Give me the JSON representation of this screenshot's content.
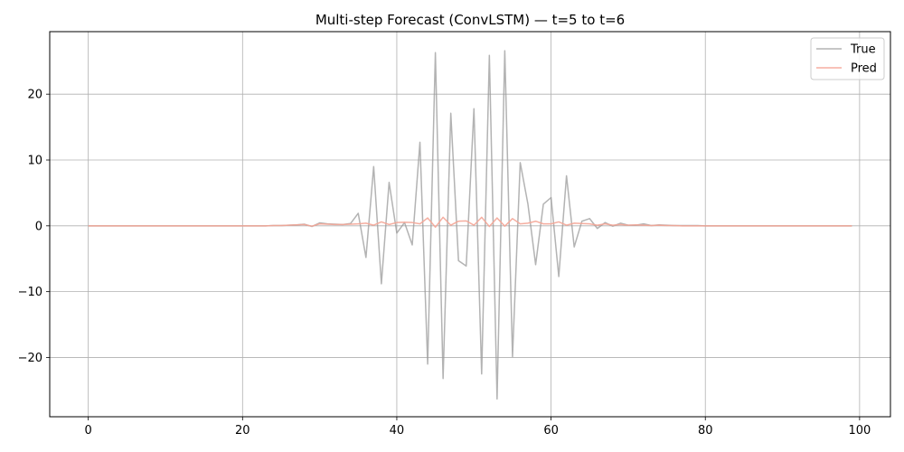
{
  "chart_data": {
    "type": "line",
    "title": "Multi-step Forecast (ConvLSTM) — t=5 to t=6",
    "xlabel": "",
    "ylabel": "",
    "xlim": [
      -5,
      104
    ],
    "ylim": [
      -29,
      29.5
    ],
    "x_ticks": [
      0,
      20,
      40,
      60,
      80,
      100
    ],
    "y_ticks": [
      -20,
      -10,
      0,
      10,
      20
    ],
    "grid": true,
    "legend_position": "top-right",
    "colors": {
      "true": "#999999",
      "pred": "#f4a596"
    },
    "x": [
      0,
      1,
      2,
      3,
      4,
      5,
      6,
      7,
      8,
      9,
      10,
      11,
      12,
      13,
      14,
      15,
      16,
      17,
      18,
      19,
      20,
      21,
      22,
      23,
      24,
      25,
      26,
      27,
      28,
      29,
      30,
      31,
      32,
      33,
      34,
      35,
      36,
      37,
      38,
      39,
      40,
      41,
      42,
      43,
      44,
      45,
      46,
      47,
      48,
      49,
      50,
      51,
      52,
      53,
      54,
      55,
      56,
      57,
      58,
      59,
      60,
      61,
      62,
      63,
      64,
      65,
      66,
      67,
      68,
      69,
      70,
      71,
      72,
      73,
      74,
      75,
      76,
      77,
      78,
      79,
      80,
      81,
      82,
      83,
      84,
      85,
      86,
      87,
      88,
      89,
      90,
      91,
      92,
      93,
      94,
      95,
      96,
      97,
      98,
      99
    ],
    "series": [
      {
        "name": "True",
        "values": [
          0,
          0,
          0,
          0,
          0,
          0,
          0,
          0,
          0,
          0,
          0,
          0,
          0,
          0,
          0,
          0,
          0,
          0,
          0,
          0,
          0,
          0,
          0,
          0,
          0.05,
          0.05,
          0.1,
          0.15,
          0.25,
          -0.1,
          0.45,
          0.3,
          0.25,
          0.2,
          0.35,
          1.9,
          -4.8,
          9.0,
          -8.8,
          6.6,
          -1.1,
          0.5,
          -2.9,
          12.7,
          -21.0,
          26.3,
          -23.2,
          17.1,
          -5.3,
          -6.1,
          17.8,
          -22.5,
          25.9,
          -26.3,
          26.6,
          -19.9,
          9.6,
          3.3,
          -5.9,
          3.3,
          4.3,
          -7.7,
          7.6,
          -3.2,
          0.7,
          1.1,
          -0.4,
          0.5,
          -0.05,
          0.4,
          0.1,
          0.1,
          0.3,
          0.05,
          0.15,
          0.1,
          0.05,
          0.05,
          0.05,
          0.05,
          0,
          0,
          0,
          0,
          0,
          0,
          0,
          0,
          0,
          0,
          0,
          0,
          0,
          0,
          0,
          0,
          0,
          0,
          0,
          0
        ]
      },
      {
        "name": "Pred",
        "values": [
          0,
          0,
          0,
          0,
          0,
          0,
          0,
          0,
          0,
          0,
          0,
          0,
          0,
          0,
          0,
          0,
          0,
          0,
          0,
          0,
          0,
          0,
          0,
          0,
          0.05,
          0.05,
          0.1,
          0.15,
          0.2,
          -0.05,
          0.3,
          0.25,
          0.2,
          0.2,
          0.25,
          0.3,
          0.4,
          0.1,
          0.6,
          0.2,
          0.5,
          0.55,
          0.5,
          0.3,
          1.2,
          -0.2,
          1.3,
          0.1,
          0.7,
          0.75,
          0.1,
          1.3,
          -0.1,
          1.2,
          -0.05,
          1.1,
          0.3,
          0.4,
          0.7,
          0.3,
          0.3,
          0.6,
          0.1,
          0.4,
          0.35,
          0.3,
          0.1,
          0.3,
          0.1,
          0.2,
          0.1,
          0.15,
          0.1,
          0.05,
          0.1,
          0.05,
          0.05,
          0,
          0,
          0,
          0,
          0,
          0,
          0,
          0,
          0,
          0,
          0,
          0,
          0,
          0,
          0,
          0,
          0,
          0,
          0,
          0,
          0,
          0,
          0
        ]
      }
    ]
  }
}
